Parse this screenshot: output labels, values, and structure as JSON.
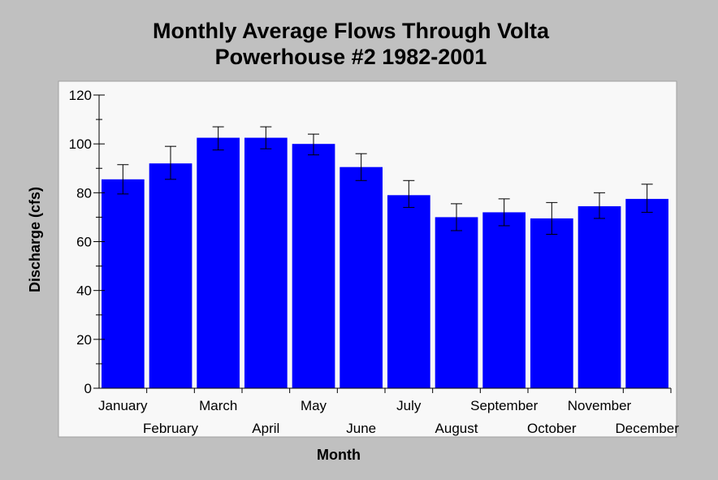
{
  "chart_data": {
    "type": "bar",
    "title_lines": [
      "Monthly Average Flows Through Volta",
      "Powerhouse #2 1982-2001"
    ],
    "xlabel": "Month",
    "ylabel": "Discharge (cfs)",
    "ylim": [
      0,
      120
    ],
    "yticks": [
      0,
      20,
      40,
      60,
      80,
      100,
      120
    ],
    "categories": [
      "January",
      "February",
      "March",
      "April",
      "May",
      "June",
      "July",
      "August",
      "September",
      "October",
      "November",
      "December"
    ],
    "values": [
      85.5,
      92,
      102.5,
      102.5,
      100,
      90.5,
      79,
      70,
      72,
      69.5,
      74.5,
      77.5
    ],
    "error_low": [
      79.5,
      85.5,
      97.5,
      98,
      95.5,
      85,
      74,
      64.5,
      66.5,
      63,
      69.5,
      72
    ],
    "error_high": [
      91.5,
      99,
      107,
      107,
      104,
      96,
      85,
      75.5,
      77.5,
      76,
      80,
      83.5
    ],
    "bar_color": "#0000ff",
    "grid": false,
    "legend": "none"
  }
}
